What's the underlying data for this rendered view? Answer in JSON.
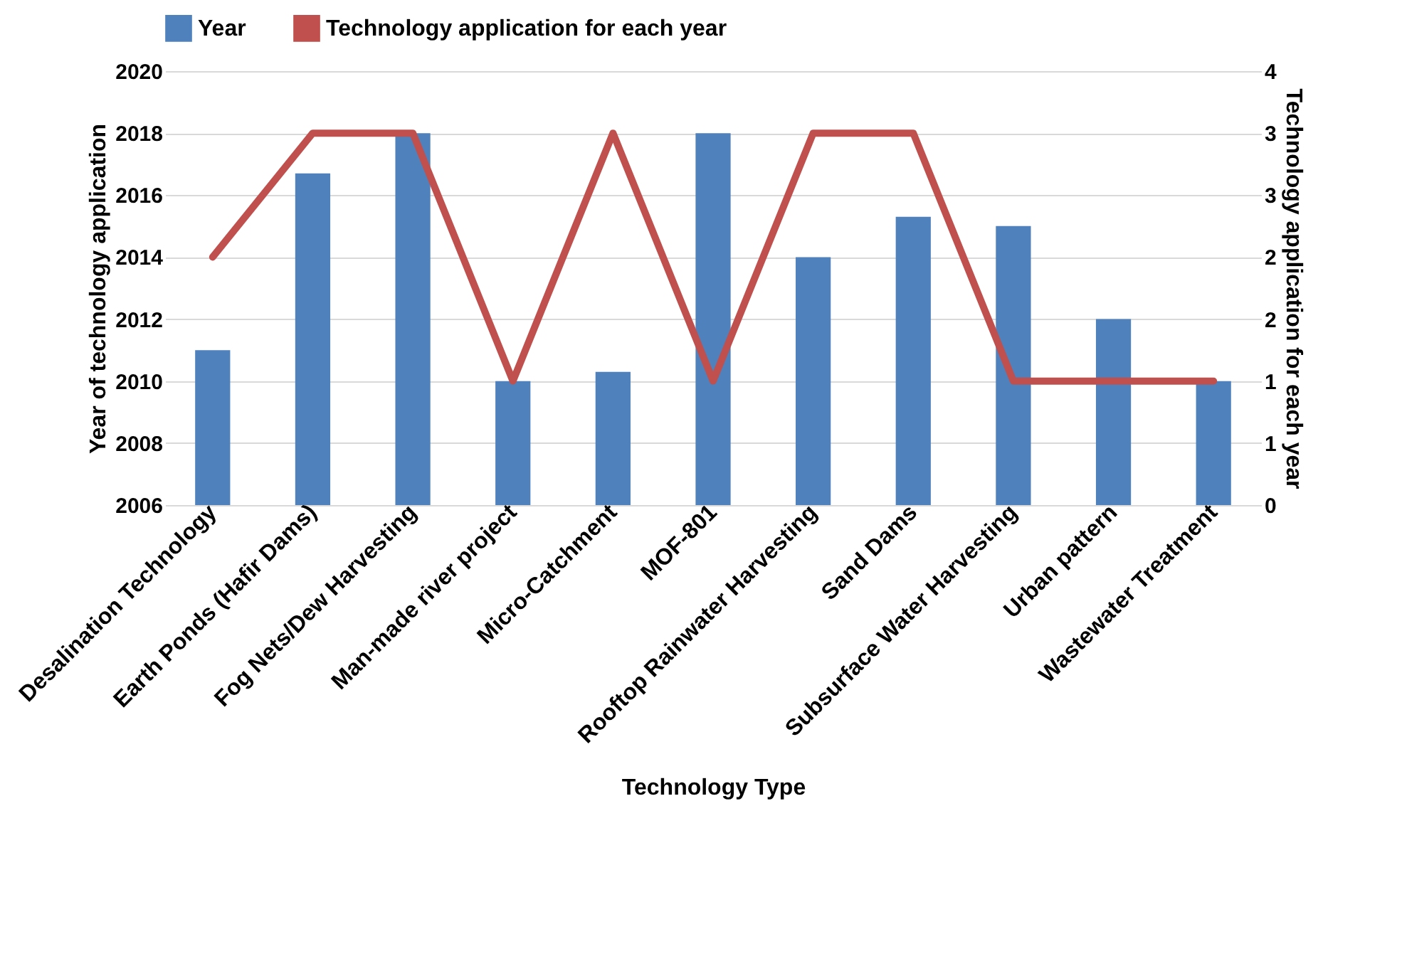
{
  "chart_data": {
    "type": "bar",
    "xlabel": "Technology Type",
    "ylabel": "Year of technology application",
    "y2label": "Technology application for each year",
    "categories": [
      "Desalination Technology",
      "Earth Ponds (Hafir Dams)",
      "Fog Nets/Dew Harvesting",
      "Man-made river project",
      "Micro-Catchment",
      "MOF-801",
      "Rooftop Rainwater Harvesting",
      "Sand Dams",
      "Subsurface Water Harvesting",
      "Urban pattern",
      "Wastewater Treatment"
    ],
    "series": [
      {
        "name": "Year",
        "color": "#4f81bd",
        "values": [
          2011,
          2016.7,
          2018,
          2010,
          2010.3,
          2018,
          2014,
          2015.3,
          2015,
          2012,
          2010
        ]
      },
      {
        "name": "Technology application for each year",
        "type": "line",
        "axis": "y2",
        "color": "#c0504d",
        "values": [
          2,
          3,
          3,
          1,
          3,
          1,
          3,
          3,
          1,
          1,
          1
        ]
      }
    ],
    "ylim": [
      2006,
      2020
    ],
    "yticks": [
      2006,
      2008,
      2010,
      2012,
      2014,
      2016,
      2018,
      2020
    ],
    "y2lim": [
      0,
      3.5
    ],
    "y2ticks": [
      0,
      {
        "value": 0.5,
        "label": "1"
      },
      1,
      {
        "value": 1.5,
        "label": "2"
      },
      2,
      {
        "value": 2.5,
        "label": "3"
      },
      3,
      {
        "value": 3.5,
        "label": "4"
      }
    ],
    "grid": "y",
    "legend": "top",
    "marker": "none",
    "line_style": "solid"
  }
}
